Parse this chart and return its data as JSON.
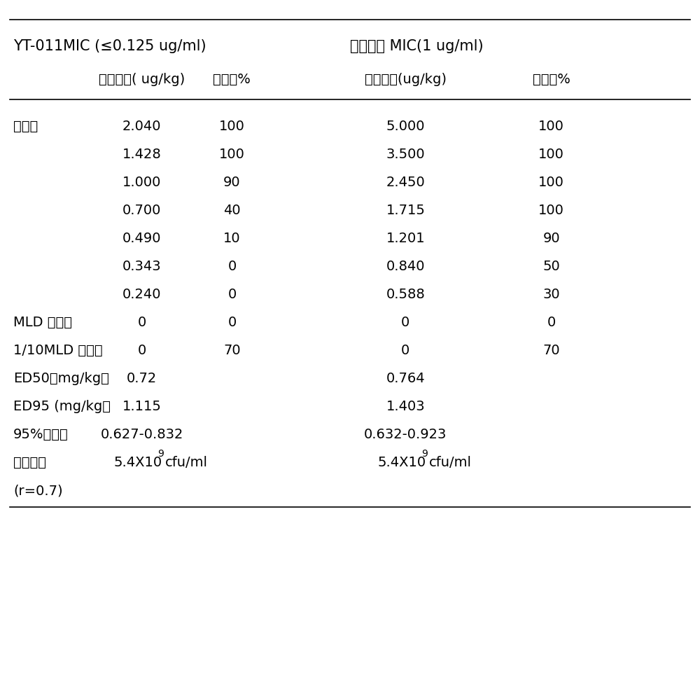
{
  "header1_title": "YT-011MIC (≤0.125 ug/ml)",
  "header2_title": "万古霉素 MIC(1 ug/ml)",
  "col1_header": "给药剂量( ug/kg)",
  "col2_header": "存活率%",
  "col3_header": "给药剂量(ug/kg)",
  "col4_header": "存活率%",
  "group_label": "治疗组",
  "mld_label": "MLD 对照组",
  "mld10_label": "1/10MLD 对照组",
  "ed50_label": "ED50（mg/kg）",
  "ed95_label": "ED95 (mg/kg）",
  "ci95_label": "95%可信限",
  "infect_label": "感染菌量",
  "r_label": "(r=0.7)",
  "yt_rows": [
    [
      "2.040",
      "100"
    ],
    [
      "1.428",
      "100"
    ],
    [
      "1.000",
      "90"
    ],
    [
      "0.700",
      "40"
    ],
    [
      "0.490",
      "10"
    ],
    [
      "0.343",
      "0"
    ],
    [
      "0.240",
      "0"
    ]
  ],
  "wan_rows": [
    [
      "5.000",
      "100"
    ],
    [
      "3.500",
      "100"
    ],
    [
      "2.450",
      "100"
    ],
    [
      "1.715",
      "100"
    ],
    [
      "1.201",
      "90"
    ],
    [
      "0.840",
      "50"
    ],
    [
      "0.588",
      "30"
    ]
  ],
  "mld_yt": [
    "0",
    "0"
  ],
  "mld_wan": [
    "0",
    "0"
  ],
  "mld10_yt": [
    "0",
    "70"
  ],
  "mld10_wan": [
    "0",
    "70"
  ],
  "ed50_yt": "0.72",
  "ed50_wan": "0.764",
  "ed95_yt": "1.115",
  "ed95_wan": "1.403",
  "ci95_yt": "0.627-0.832",
  "ci95_wan": "0.632-0.923",
  "bg_color": "#ffffff",
  "text_color": "#000000",
  "font_size": 14,
  "header_font_size": 15,
  "line_width": 1.2
}
